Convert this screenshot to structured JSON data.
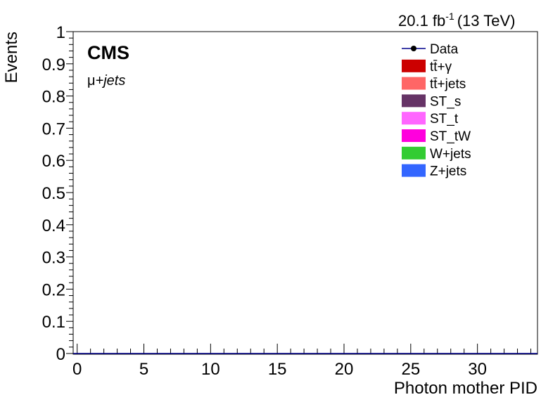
{
  "chart_data": {
    "type": "bar",
    "title": "",
    "xlabel": "Photon mother PID",
    "ylabel": "Events",
    "xlim": [
      -0.3,
      34.5
    ],
    "ylim": [
      0,
      1
    ],
    "x_ticks": [
      "0",
      "5",
      "10",
      "15",
      "20",
      "25",
      "30"
    ],
    "x_tick_values": [
      0,
      5,
      10,
      15,
      20,
      25,
      30
    ],
    "y_ticks": [
      "0",
      "0.1",
      "0.2",
      "0.3",
      "0.4",
      "0.5",
      "0.6",
      "0.7",
      "0.8",
      "0.9",
      "1"
    ],
    "y_tick_values": [
      0,
      0.1,
      0.2,
      0.3,
      0.4,
      0.5,
      0.6,
      0.7,
      0.8,
      0.9,
      1
    ],
    "lumi_value": "20.1 fb",
    "lumi_exp": "-1",
    "energy": "(13 TeV)",
    "experiment": "CMS",
    "channel_symbol": "μ",
    "channel_text": "+jets",
    "legend_position": "top-right",
    "legend": [
      {
        "label": "Data",
        "marker": "point",
        "color": "#000000"
      },
      {
        "label": "tt̄+γ",
        "marker": "fill",
        "color": "#cc0000"
      },
      {
        "label": "tt̄+jets",
        "marker": "fill",
        "color": "#ff6666"
      },
      {
        "label": "ST_s",
        "marker": "fill",
        "color": "#663366"
      },
      {
        "label": "ST_t",
        "marker": "fill",
        "color": "#ff66ff"
      },
      {
        "label": "ST_tW",
        "marker": "fill",
        "color": "#ff00dd"
      },
      {
        "label": "W+jets",
        "marker": "fill",
        "color": "#33cc33"
      },
      {
        "label": "Z+jets",
        "marker": "fill",
        "color": "#3366ff"
      }
    ],
    "series": [
      {
        "name": "Data",
        "values": []
      }
    ],
    "grid": false
  }
}
